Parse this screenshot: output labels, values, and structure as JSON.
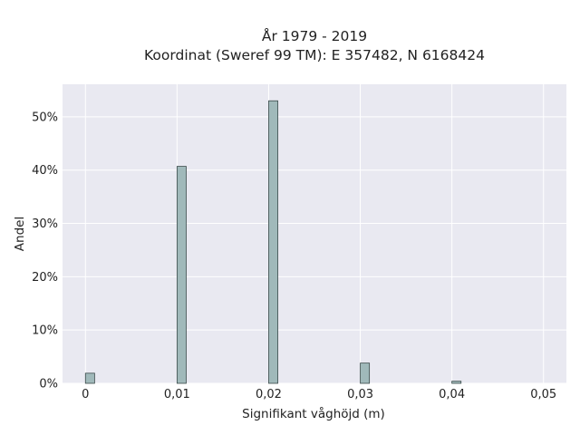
{
  "chart_data": {
    "type": "bar",
    "title": "År 1979 - 2019",
    "subtitle": "Koordinat (Sweref 99 TM): E 357482, N 6168424",
    "xlabel": "Signifikant våghöjd (m)",
    "ylabel": "Andel",
    "x_ticks": [
      "0",
      "0,01",
      "0,02",
      "0,03",
      "0,04",
      "0,05"
    ],
    "x_tick_values": [
      0,
      0.01,
      0.02,
      0.03,
      0.04,
      0.05
    ],
    "y_ticks": [
      "0%",
      "10%",
      "20%",
      "30%",
      "40%",
      "50%"
    ],
    "y_tick_values": [
      0,
      10,
      20,
      30,
      40,
      50
    ],
    "xlim": [
      -0.0025,
      0.0525
    ],
    "ylim": [
      0,
      56.1
    ],
    "bin_width": 0.001,
    "x": [
      0.0005,
      0.0105,
      0.0205,
      0.0305,
      0.0405
    ],
    "values": [
      1.9,
      40.7,
      53.0,
      3.8,
      0.4
    ],
    "bar_color": "#a0b9ba",
    "bar_edge_color": "#3a4a4a",
    "plot_background": "#e9e9f1",
    "grid": true
  }
}
